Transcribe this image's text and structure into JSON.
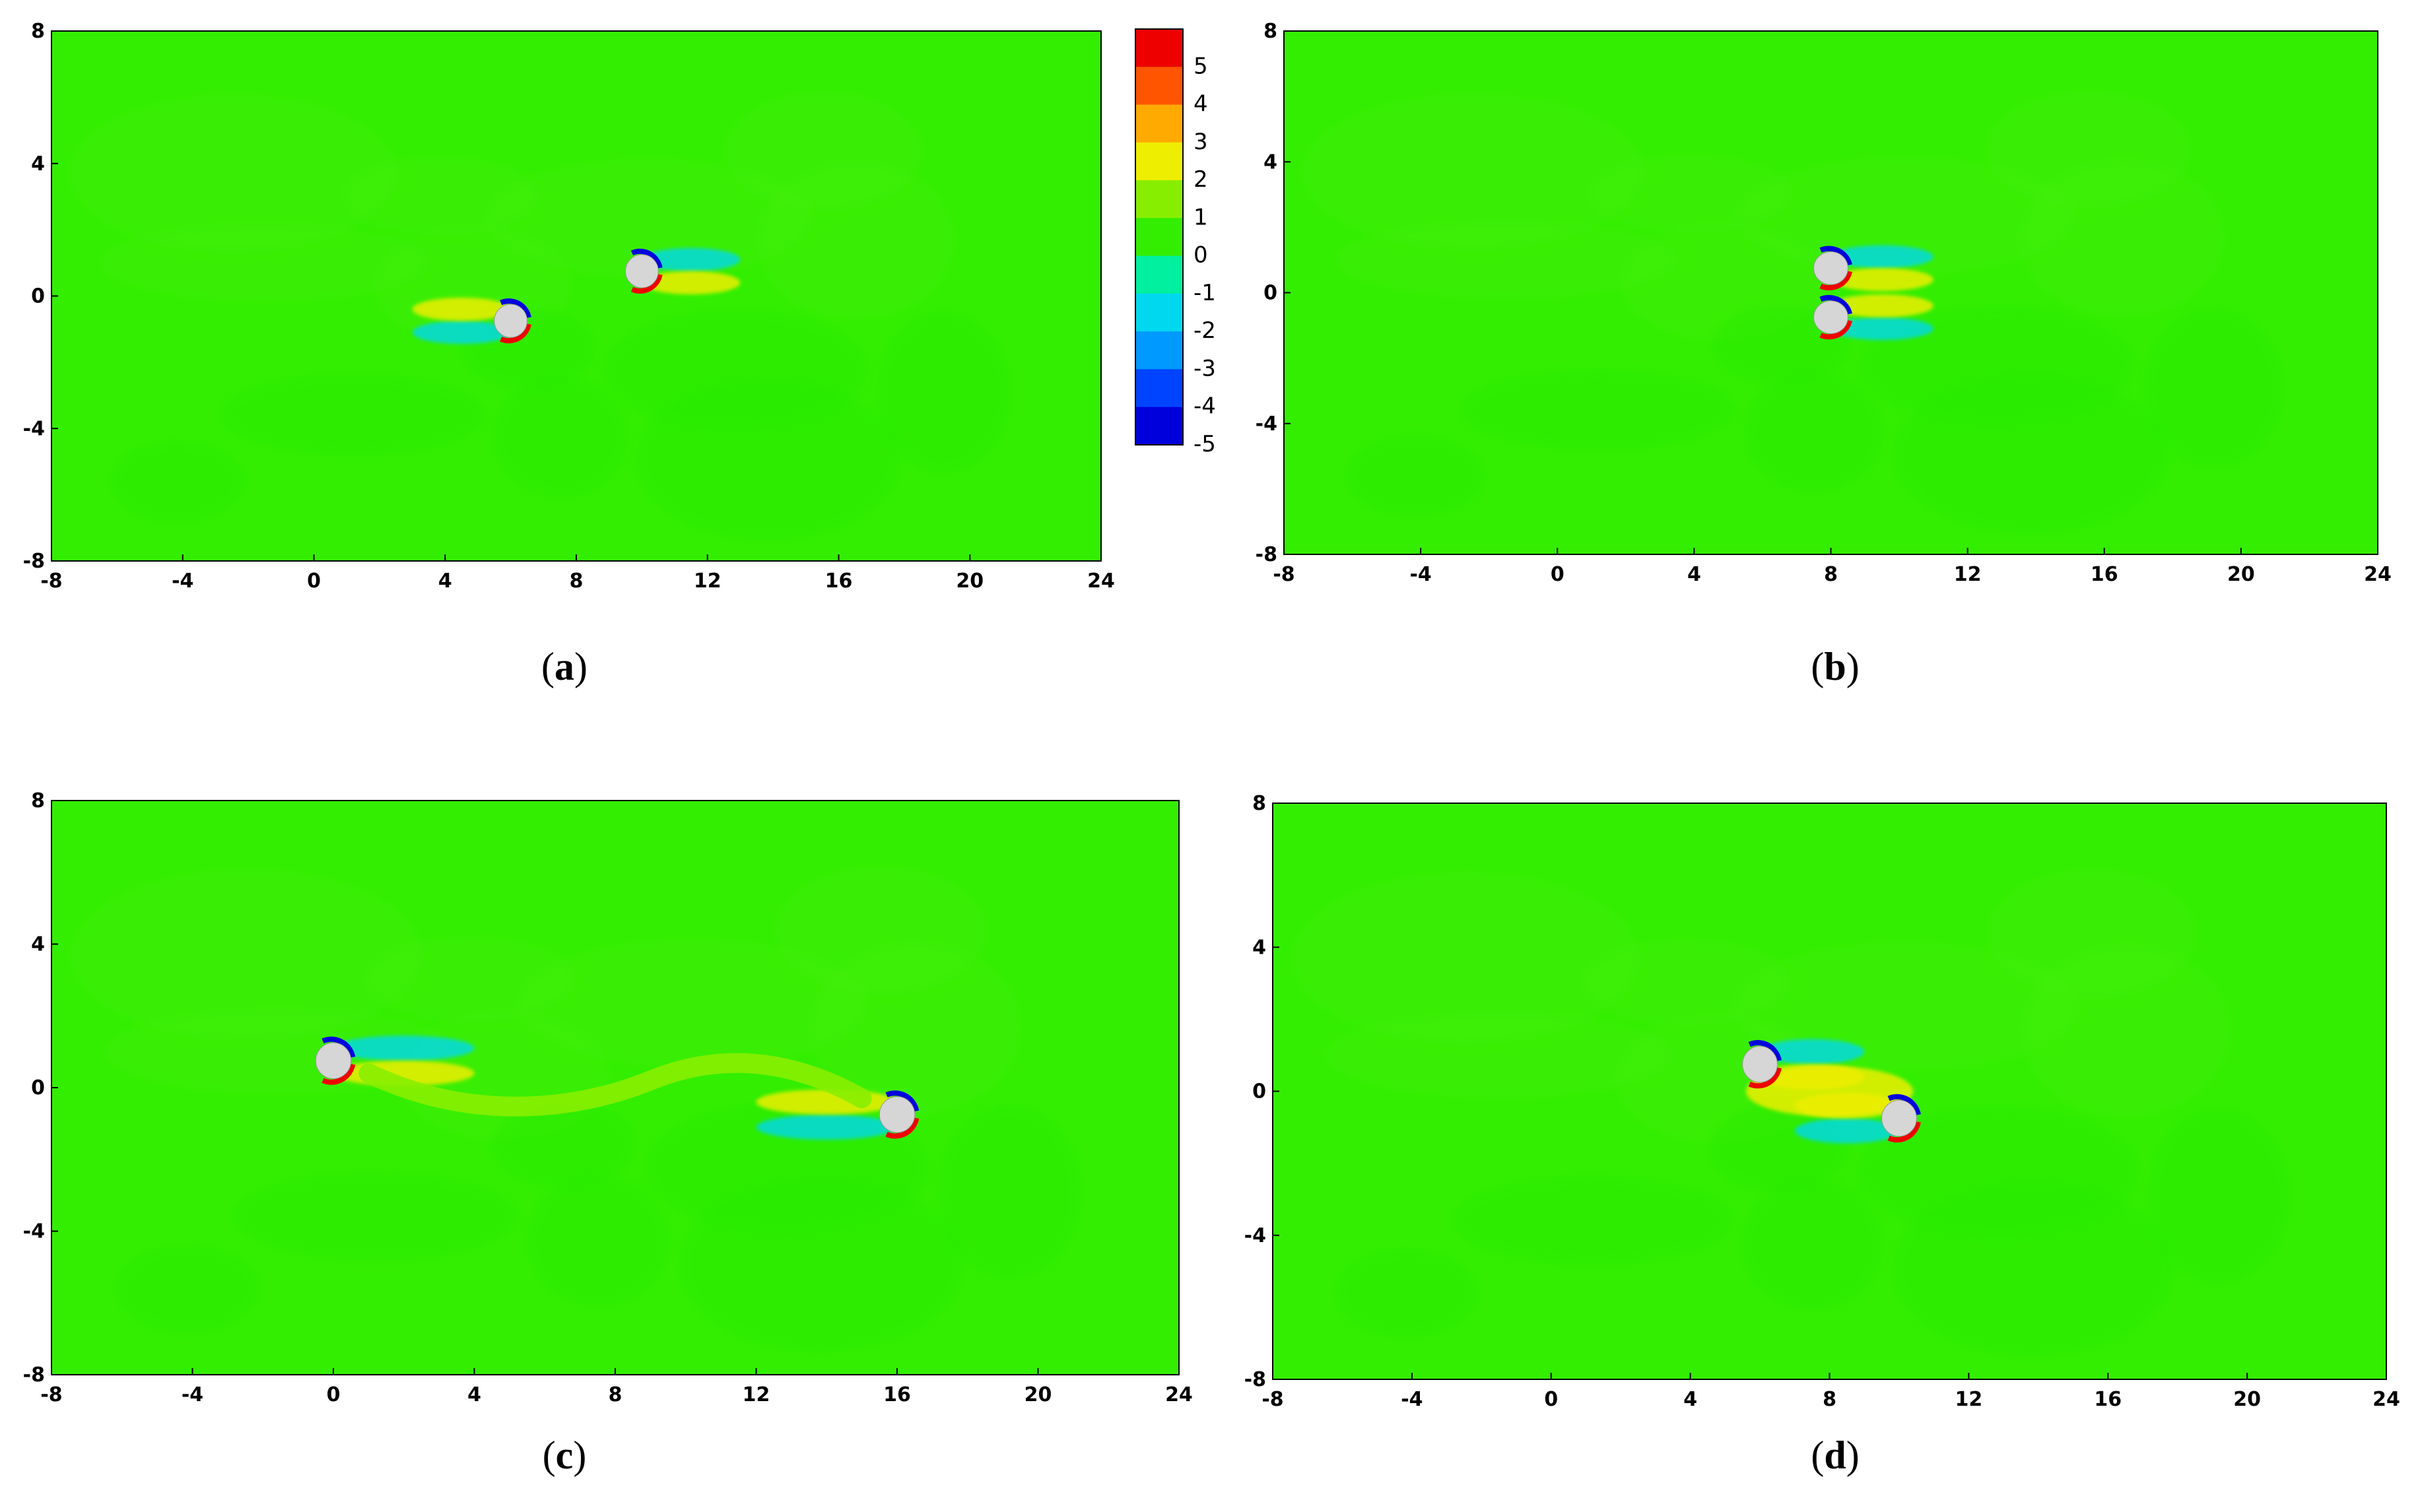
{
  "figure": {
    "colors": {
      "background_field": "#33ee00",
      "cylinder_fill": "#d6d6d6",
      "levels": [
        "#0000dd",
        "#0044ff",
        "#0099ff",
        "#00d8f0",
        "#00f0a0",
        "#33ee00",
        "#88ee00",
        "#eeee00",
        "#ffaa00",
        "#ff5500",
        "#ee0000"
      ]
    },
    "colorbar": {
      "labels": [
        "5",
        "4",
        "3",
        "2",
        "1",
        "0",
        "-1",
        "-2",
        "-3",
        "-4",
        "-5"
      ]
    }
  },
  "chart_data": [
    {
      "type": "heatmap",
      "panel_label": "a",
      "xlim": [
        -8,
        24
      ],
      "ylim": [
        -8,
        8
      ],
      "xticks": [
        "-8",
        "-4",
        "0",
        "4",
        "8",
        "12",
        "16",
        "20",
        "24"
      ],
      "yticks": [
        "8",
        "4",
        "0",
        "-4",
        "-8"
      ],
      "cylinders": [
        {
          "x": 6,
          "y": -0.75
        },
        {
          "x": 10,
          "y": 0.75
        }
      ],
      "wake": "two separated short wakes"
    },
    {
      "type": "heatmap",
      "panel_label": "b",
      "xlim": [
        -8,
        24
      ],
      "ylim": [
        -8,
        8
      ],
      "xticks": [
        "-8",
        "-4",
        "0",
        "4",
        "8",
        "12",
        "16",
        "20",
        "24"
      ],
      "yticks": [
        "8",
        "4",
        "0",
        "-4",
        "-8"
      ],
      "cylinders": [
        {
          "x": 8,
          "y": -0.75
        },
        {
          "x": 8,
          "y": 0.75
        }
      ],
      "wake": "side-by-side overlapping wakes"
    },
    {
      "type": "heatmap",
      "panel_label": "c",
      "xlim": [
        -8,
        24
      ],
      "ylim": [
        -8,
        8
      ],
      "xticks": [
        "-8",
        "-4",
        "0",
        "4",
        "8",
        "12",
        "16",
        "20",
        "24"
      ],
      "yticks": [
        "8",
        "4",
        "0",
        "-4",
        "-8"
      ],
      "cylinders": [
        {
          "x": 0,
          "y": 0.75
        },
        {
          "x": 16,
          "y": -0.75
        }
      ],
      "wake": "long connecting S-shaped wake"
    },
    {
      "type": "heatmap",
      "panel_label": "d",
      "xlim": [
        -8,
        24
      ],
      "ylim": [
        -8,
        8
      ],
      "xticks": [
        "-8",
        "-4",
        "0",
        "4",
        "8",
        "12",
        "16",
        "20",
        "24"
      ],
      "yticks": [
        "8",
        "4",
        "0",
        "-4",
        "-8"
      ],
      "cylinders": [
        {
          "x": 6,
          "y": 0.75
        },
        {
          "x": 10,
          "y": -0.75
        }
      ],
      "wake": "merged central wake"
    }
  ]
}
